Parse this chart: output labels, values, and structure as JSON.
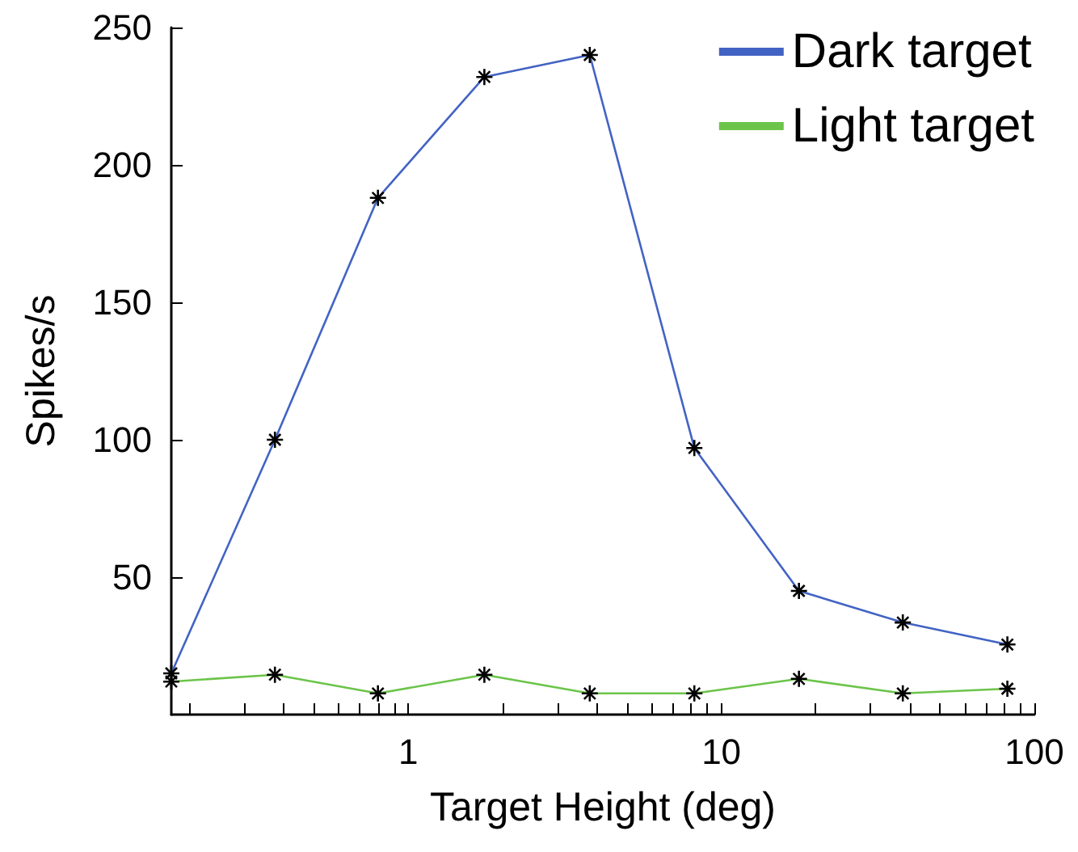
{
  "chart_data": {
    "type": "line",
    "xlabel": "Target Height (deg)",
    "ylabel": "Spikes/s",
    "log": "x",
    "x": [
      0.175,
      0.375,
      0.8,
      1.75,
      3.8,
      8.2,
      17.7,
      38,
      82
    ],
    "series": [
      {
        "name": "Dark target",
        "color": "#4363c4",
        "values": [
          15,
          100,
          188,
          232,
          240,
          97,
          45,
          33.5,
          25.5
        ]
      },
      {
        "name": "Light target",
        "color": "#6cc44a",
        "values": [
          12,
          14.5,
          7.7,
          14.5,
          7.7,
          7.7,
          13,
          7.7,
          9.4
        ]
      }
    ],
    "xlim": [
      0.175,
      100
    ],
    "xticks": [
      {
        "value": 0.2,
        "label": null
      },
      {
        "value": 0.3,
        "label": null
      },
      {
        "value": 0.4,
        "label": null
      },
      {
        "value": 0.5,
        "label": null
      },
      {
        "value": 0.6,
        "label": null
      },
      {
        "value": 0.7,
        "label": null
      },
      {
        "value": 0.8,
        "label": null
      },
      {
        "value": 0.9,
        "label": null
      },
      1,
      {
        "value": 2,
        "label": null
      },
      {
        "value": 3,
        "label": null
      },
      {
        "value": 4,
        "label": null
      },
      {
        "value": 5,
        "label": null
      },
      {
        "value": 6,
        "label": null
      },
      {
        "value": 7,
        "label": null
      },
      {
        "value": 8,
        "label": null
      },
      {
        "value": 9,
        "label": null
      },
      10,
      {
        "value": 20,
        "label": null
      },
      {
        "value": 30,
        "label": null
      },
      {
        "value": 40,
        "label": null
      },
      {
        "value": 50,
        "label": null
      },
      {
        "value": 60,
        "label": null
      },
      {
        "value": 70,
        "label": null
      },
      {
        "value": 80,
        "label": null
      },
      {
        "value": 90,
        "label": null
      },
      100
    ],
    "ylim": [
      0,
      250
    ],
    "yticks": [
      50,
      100,
      150,
      200,
      250
    ],
    "grid": false,
    "legend": "top right",
    "marker": "cross",
    "line_style": "solid"
  }
}
